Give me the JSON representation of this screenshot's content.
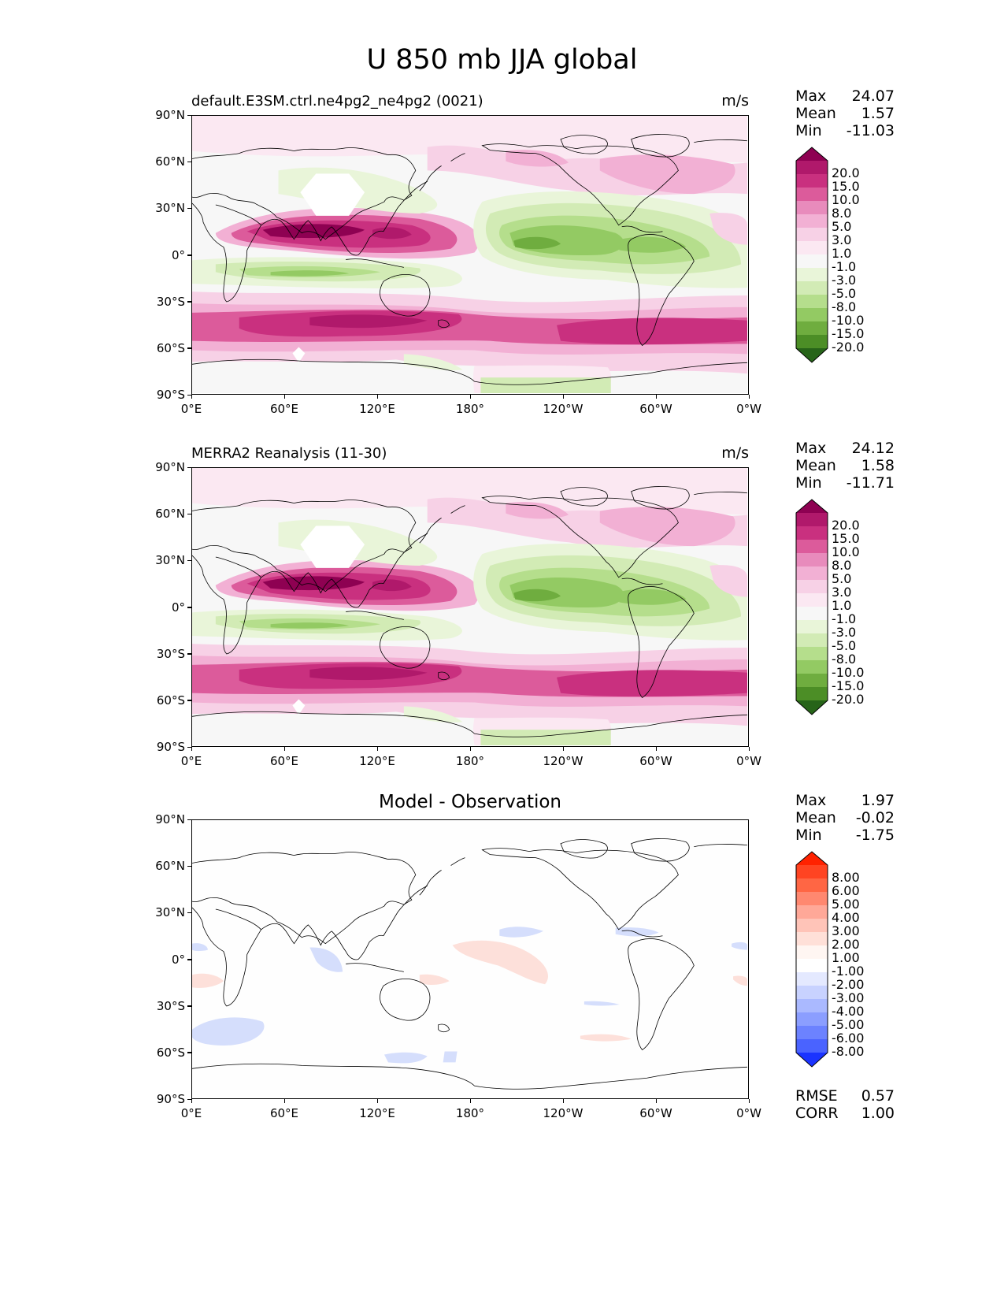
{
  "title": "U 850 mb JJA global",
  "lat_ticks": [
    "90°N",
    "60°N",
    "30°N",
    "0°",
    "30°S",
    "60°S",
    "90°S"
  ],
  "lon_ticks": [
    "0°E",
    "60°E",
    "120°E",
    "180°",
    "120°W",
    "60°W",
    "0°W"
  ],
  "panels": [
    {
      "title": "default.E3SM.ctrl.ne4pg2_ne4pg2 (0021)",
      "units": "m/s",
      "stats": [
        {
          "label": "Max",
          "value": "24.07"
        },
        {
          "label": "Mean",
          "value": "1.57"
        },
        {
          "label": "Min",
          "value": "-11.03"
        }
      ],
      "colorbar_labels": [
        "20.0",
        "15.0",
        "10.0",
        "8.0",
        "5.0",
        "3.0",
        "1.0",
        "-1.0",
        "-3.0",
        "-5.0",
        "-8.0",
        "-10.0",
        "-15.0",
        "-20.0"
      ],
      "colorbar_colors": [
        "#8e0152",
        "#b0196b",
        "#c9307f",
        "#dc5b9b",
        "#e88bbc",
        "#f2b0d4",
        "#f7d1e6",
        "#fbe8f2",
        "#f7f7f7",
        "#e9f5d9",
        "#d2ebb5",
        "#b5de8c",
        "#93ca63",
        "#6fad3f",
        "#4c8e26",
        "#276419"
      ]
    },
    {
      "title": "MERRA2 Reanalysis (11-30)",
      "units": "m/s",
      "stats": [
        {
          "label": "Max",
          "value": "24.12"
        },
        {
          "label": "Mean",
          "value": "1.58"
        },
        {
          "label": "Min",
          "value": "-11.71"
        }
      ],
      "colorbar_labels": [
        "20.0",
        "15.0",
        "10.0",
        "8.0",
        "5.0",
        "3.0",
        "1.0",
        "-1.0",
        "-3.0",
        "-5.0",
        "-8.0",
        "-10.0",
        "-15.0",
        "-20.0"
      ],
      "colorbar_colors": [
        "#8e0152",
        "#b0196b",
        "#c9307f",
        "#dc5b9b",
        "#e88bbc",
        "#f2b0d4",
        "#f7d1e6",
        "#fbe8f2",
        "#f7f7f7",
        "#e9f5d9",
        "#d2ebb5",
        "#b5de8c",
        "#93ca63",
        "#6fad3f",
        "#4c8e26",
        "#276419"
      ]
    },
    {
      "title": "Model - Observation",
      "units": "",
      "stats": [
        {
          "label": "Max",
          "value": "1.97"
        },
        {
          "label": "Mean",
          "value": "-0.02"
        },
        {
          "label": "Min",
          "value": "-1.75"
        }
      ],
      "colorbar_labels": [
        "8.00",
        "6.00",
        "5.00",
        "4.00",
        "3.00",
        "2.00",
        "1.00",
        "-1.00",
        "-2.00",
        "-3.00",
        "-4.00",
        "-5.00",
        "-6.00",
        "-8.00"
      ],
      "colorbar_colors": [
        "#ff2200",
        "#ff4422",
        "#ff6644",
        "#ff8870",
        "#ffa898",
        "#ffc4b8",
        "#ffe0d8",
        "#fff6f2",
        "#ffffff",
        "#e4e9ff",
        "#c8d2ff",
        "#aab9ff",
        "#8b9eff",
        "#6c82ff",
        "#4a63ff",
        "#1a33ff"
      ],
      "metrics": [
        {
          "label": "RMSE",
          "value": "0.57"
        },
        {
          "label": "CORR",
          "value": "1.00"
        }
      ]
    }
  ]
}
